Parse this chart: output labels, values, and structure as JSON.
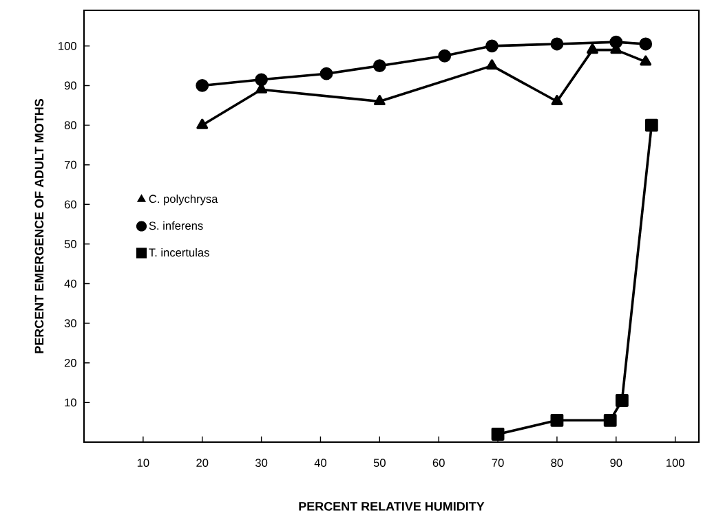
{
  "chart_data": {
    "type": "line",
    "xlabel": "PERCENT RELATIVE HUMIDITY",
    "ylabel": "PERCENT EMERGENCE OF ADULT MOTHS",
    "xlim": [
      0,
      104
    ],
    "ylim": [
      0,
      109
    ],
    "xticks": [
      10,
      20,
      30,
      40,
      50,
      60,
      70,
      80,
      90,
      100
    ],
    "yticks": [
      10,
      20,
      30,
      40,
      50,
      60,
      70,
      80,
      90,
      100
    ],
    "grid": false,
    "legend": "left",
    "line_style": "solid",
    "series": [
      {
        "name": "C. polychrysa",
        "color": "#000000",
        "marker": "triangle",
        "x": [
          20,
          30,
          50,
          69,
          80,
          86,
          90,
          95
        ],
        "values": [
          80,
          89,
          86,
          95,
          86,
          99,
          99,
          96
        ]
      },
      {
        "name": "S. inferens",
        "color": "#000000",
        "marker": "circle",
        "x": [
          20,
          30,
          41,
          50,
          61,
          69,
          80,
          90,
          95
        ],
        "values": [
          90,
          91.5,
          93,
          95,
          97.5,
          100,
          100.5,
          101,
          100.5
        ]
      },
      {
        "name": "T. incertulas",
        "color": "#000000",
        "marker": "square",
        "x": [
          70,
          80,
          89,
          91,
          96
        ],
        "values": [
          2,
          5.5,
          5.5,
          10.5,
          80
        ]
      }
    ]
  }
}
